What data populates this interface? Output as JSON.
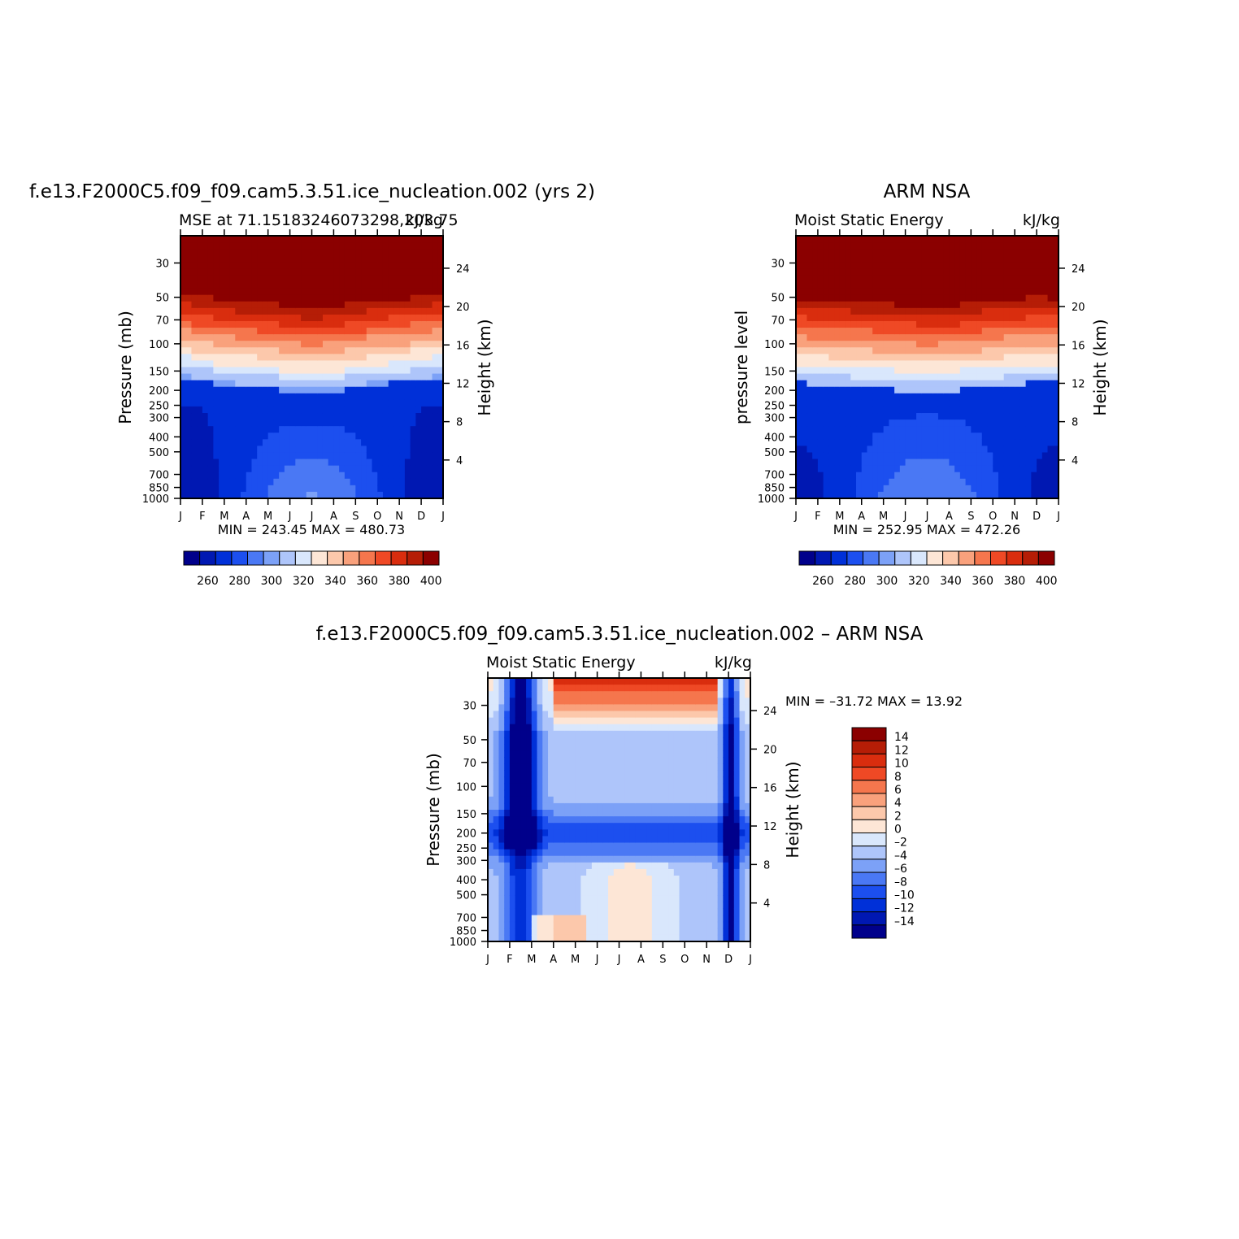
{
  "chart_data": [
    {
      "id": "model",
      "type": "heatmap",
      "title": "f.e13.F2000C5.f09_f09.cam5.3.51.ice_nucleation.002 (yrs 2)",
      "subtitle_left": "MSE at 71.15183246073298,203.75",
      "subtitle_right": "kJ/kg",
      "ylabel": "Pressure (mb)",
      "ylabel_right": "Height (km)",
      "stats": "MIN =  243.45  MAX =  480.73",
      "x_ticks": [
        "J",
        "F",
        "M",
        "A",
        "M",
        "J",
        "J",
        "A",
        "S",
        "O",
        "N",
        "D",
        "J"
      ],
      "y_ticks": [
        30,
        50,
        70,
        100,
        150,
        200,
        250,
        300,
        400,
        500,
        700,
        850,
        1000
      ],
      "height_ticks": [
        24,
        20,
        16,
        12,
        8,
        4
      ],
      "colorbar_labels": [
        "260",
        "280",
        "300",
        "320",
        "340",
        "360",
        "380",
        "400"
      ],
      "levels": [
        250,
        260,
        270,
        280,
        290,
        300,
        310,
        320,
        330,
        340,
        350,
        360,
        370,
        380,
        390,
        400
      ],
      "min": 243.45,
      "max": 480.73
    },
    {
      "id": "obs",
      "type": "heatmap",
      "title": "ARM NSA",
      "subtitle_left": "Moist Static Energy",
      "subtitle_right": "kJ/kg",
      "ylabel": "pressure level",
      "ylabel_right": "Height (km)",
      "stats": "MIN =  252.95  MAX =  472.26",
      "x_ticks": [
        "J",
        "F",
        "M",
        "A",
        "M",
        "J",
        "J",
        "A",
        "S",
        "O",
        "N",
        "D",
        "J"
      ],
      "y_ticks": [
        30,
        50,
        70,
        100,
        150,
        200,
        250,
        300,
        400,
        500,
        700,
        850,
        1000
      ],
      "height_ticks": [
        24,
        20,
        16,
        12,
        8,
        4
      ],
      "colorbar_labels": [
        "260",
        "280",
        "300",
        "320",
        "340",
        "360",
        "380",
        "400"
      ],
      "levels": [
        250,
        260,
        270,
        280,
        290,
        300,
        310,
        320,
        330,
        340,
        350,
        360,
        370,
        380,
        390,
        400
      ],
      "min": 252.95,
      "max": 472.26
    },
    {
      "id": "diff",
      "type": "heatmap",
      "title": "f.e13.F2000C5.f09_f09.cam5.3.51.ice_nucleation.002 – ARM NSA",
      "subtitle_left": "Moist Static Energy",
      "subtitle_right": "kJ/kg",
      "ylabel": "Pressure (mb)",
      "ylabel_right": "Height (km)",
      "stats": "MIN = –31.72  MAX =   13.92",
      "x_ticks": [
        "J",
        "F",
        "M",
        "A",
        "M",
        "J",
        "J",
        "A",
        "S",
        "O",
        "N",
        "D",
        "J"
      ],
      "y_ticks": [
        30,
        50,
        70,
        100,
        150,
        200,
        250,
        300,
        400,
        500,
        700,
        850,
        1000
      ],
      "height_ticks": [
        24,
        20,
        16,
        12,
        8,
        4
      ],
      "colorbar_labels": [
        "14",
        "12",
        "10",
        "8",
        "6",
        "4",
        "2",
        "0",
        "–2",
        "–4",
        "–6",
        "–8",
        "–10",
        "–12",
        "–14"
      ],
      "levels": [
        -14,
        -12,
        -10,
        -8,
        -6,
        -4,
        -2,
        0,
        2,
        4,
        6,
        8,
        10,
        12,
        14
      ],
      "min": -31.72,
      "max": 13.92
    }
  ],
  "palette": [
    "#00008b",
    "#0018b2",
    "#0030d8",
    "#1c4fef",
    "#4a78f4",
    "#7ca1f7",
    "#aec5fa",
    "#d9e7fc",
    "#fde6d6",
    "#fcc8ab",
    "#f9a17c",
    "#f5764d",
    "#ef4925",
    "#d92d0e",
    "#b51d06",
    "#8b0000"
  ]
}
